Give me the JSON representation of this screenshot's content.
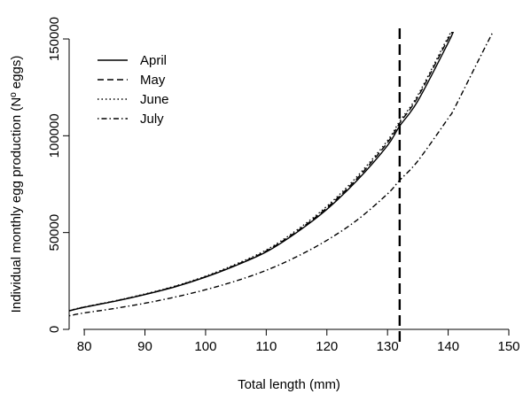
{
  "chart_data": {
    "type": "line",
    "title": "",
    "xlabel": "Total length (mm)",
    "ylabel": "Individual monthly egg production (Nº eggs)",
    "xlim": [
      77.5,
      150
    ],
    "ylim": [
      0,
      150000
    ],
    "x_ticks": [
      80,
      90,
      100,
      110,
      120,
      130,
      140,
      150
    ],
    "y_ticks": [
      0,
      50000,
      100000,
      150000
    ],
    "x_tick_labels": [
      "80",
      "90",
      "100",
      "110",
      "120",
      "130",
      "140",
      "150"
    ],
    "y_tick_labels": [
      "0",
      "50000",
      "100000",
      "150000"
    ],
    "grid": false,
    "legend_position": "top-left",
    "x": [
      77.5,
      80,
      85,
      90,
      95,
      100,
      105,
      110,
      115,
      120,
      125,
      130,
      132,
      135,
      140,
      141,
      145,
      147.6
    ],
    "series": [
      {
        "name": "April",
        "line_style": "solid",
        "values": [
          9500,
          11400,
          14500,
          18000,
          22000,
          27000,
          33000,
          40000,
          50000,
          62000,
          77000,
          95000,
          105000,
          118000,
          148000,
          155000,
          null,
          null
        ]
      },
      {
        "name": "May",
        "line_style": "dashed",
        "values": [
          9600,
          11500,
          14600,
          18100,
          22200,
          27200,
          33300,
          40500,
          50500,
          62800,
          78000,
          96500,
          106500,
          120000,
          150000,
          155000,
          null,
          null
        ]
      },
      {
        "name": "June",
        "line_style": "dotted",
        "values": [
          9700,
          11600,
          14700,
          18300,
          22400,
          27500,
          33700,
          41000,
          51200,
          63600,
          79000,
          97500,
          107500,
          121000,
          151000,
          155000,
          null,
          null
        ]
      },
      {
        "name": "July",
        "line_style": "dotdash",
        "values": [
          7000,
          8500,
          10800,
          13500,
          16700,
          20500,
          25000,
          30500,
          37500,
          46000,
          56500,
          70000,
          77000,
          87000,
          109000,
          114000,
          139000,
          155000
        ]
      }
    ],
    "reference_line": {
      "axis": "x",
      "value": 132,
      "line_style": "longdash"
    }
  }
}
